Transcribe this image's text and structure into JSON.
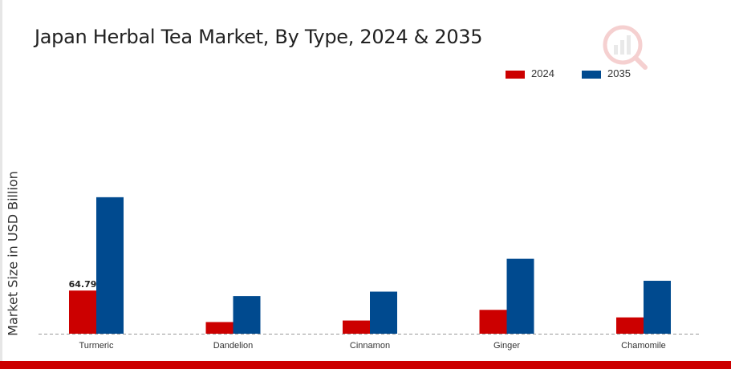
{
  "title": "Japan Herbal Tea Market, By Type, 2024 & 2035",
  "logo_icon": "market-research-logo-icon",
  "colors": {
    "series_2024": "#cc0000",
    "series_2035": "#004a8f",
    "bottom_bar": "#cc0000",
    "baseline": "#999999"
  },
  "chart_data": {
    "type": "bar",
    "title": "Japan Herbal Tea Market, By Type, 2024 & 2035",
    "xlabel": "",
    "ylabel": "Market Size in USD Billion",
    "categories": [
      "Turmeric",
      "Dandelion",
      "Cinnamon",
      "Ginger",
      "Chamomile"
    ],
    "series": [
      {
        "name": "2024",
        "color": "#cc0000",
        "values": [
          64.79,
          17.5,
          19.8,
          35.8,
          24.5
        ]
      },
      {
        "name": "2035",
        "color": "#004a8f",
        "values": [
          205.0,
          56.5,
          63.2,
          112.5,
          79.5
        ]
      }
    ],
    "data_labels": [
      {
        "series": "2024",
        "category": "Turmeric",
        "text": "64.79"
      }
    ],
    "ylim": [
      0,
      280
    ],
    "grid": false,
    "legend_position": "top-right"
  }
}
